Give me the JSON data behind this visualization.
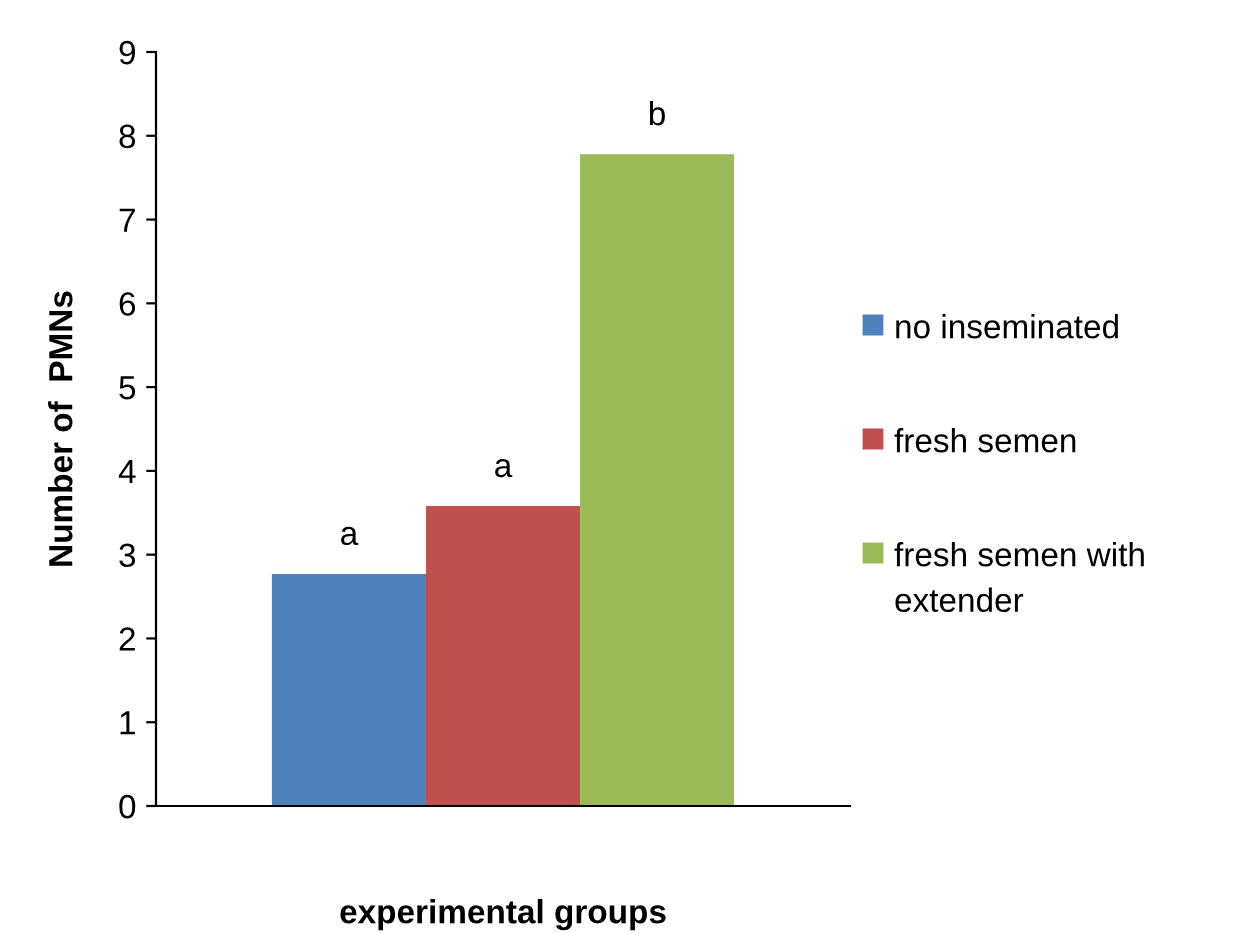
{
  "chart_data": {
    "type": "bar",
    "xlabel": "experimental groups",
    "ylabel": "Number of  PMNs",
    "categories": [
      null
    ],
    "series": [
      {
        "name": "no inseminated",
        "color": "#4f81bd",
        "values": [
          2.77
        ]
      },
      {
        "name": "fresh semen",
        "color": "#c0504d",
        "values": [
          3.58
        ]
      },
      {
        "name": "fresh semen with extender",
        "color": "#9bbb59",
        "values": [
          7.78
        ]
      }
    ],
    "annotations": [
      {
        "text": "a",
        "y": 2.77
      },
      {
        "text": "a",
        "y": 3.58
      },
      {
        "text": "b",
        "y": 7.78
      }
    ],
    "ylim": [
      0,
      9
    ],
    "yticks": [
      0,
      1,
      2,
      3,
      4,
      5,
      6,
      7,
      8,
      9
    ],
    "grid": false,
    "legend": "right"
  }
}
